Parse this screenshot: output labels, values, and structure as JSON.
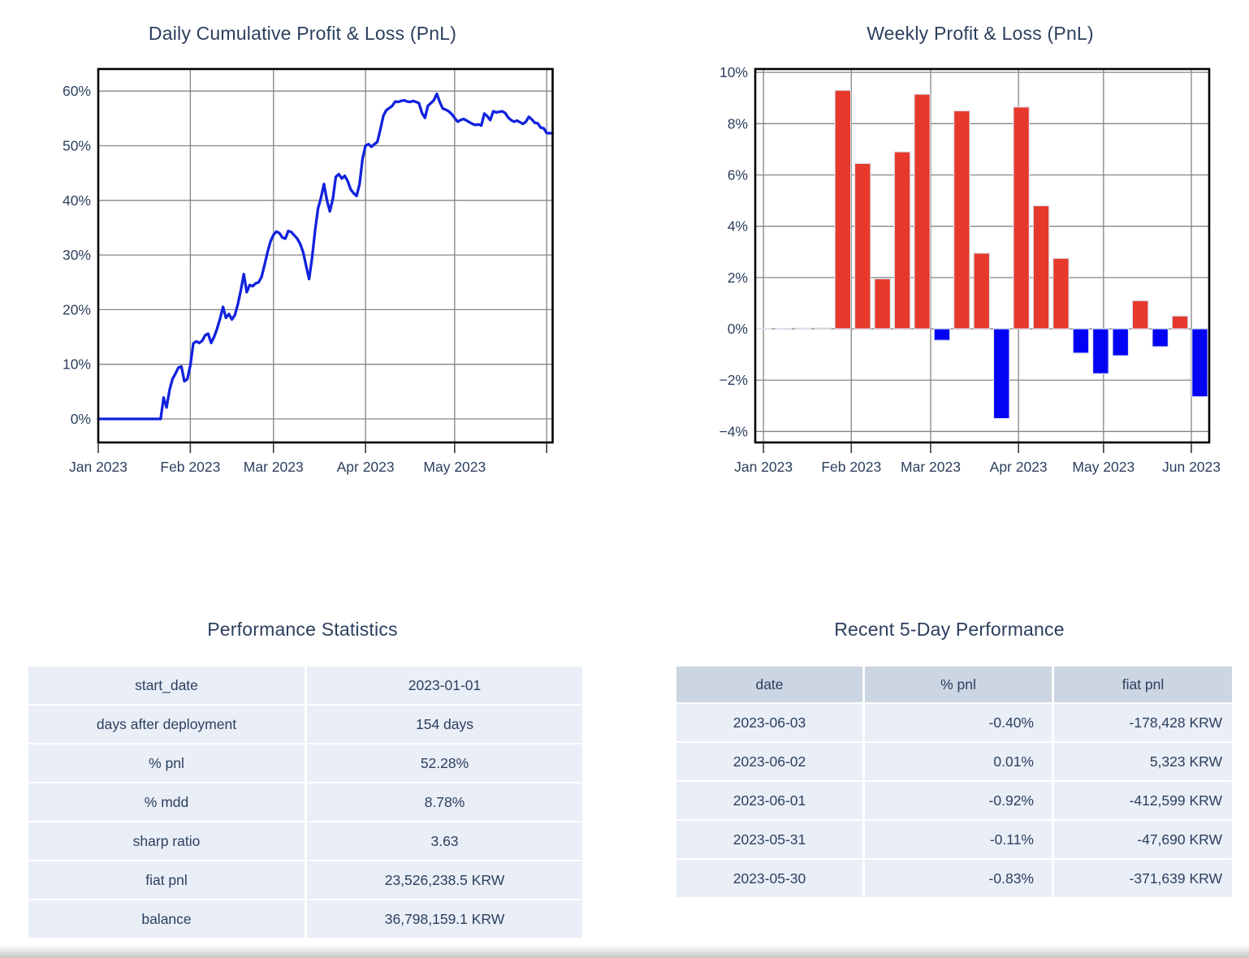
{
  "colors": {
    "text": "#2c3f5e",
    "grid": "#848484",
    "plot_border": "#000000",
    "line_blue": "#1122dd",
    "bar_positive_red": "#e6392b",
    "bar_negative_blue": "#0202f5",
    "bar_edge": "#dde4f0",
    "table_row_bg": "#e9eef7",
    "table_header_bg": "#ccd5e2"
  },
  "charts": {
    "daily": {
      "title": "Daily Cumulative Profit & Loss (PnL)",
      "chart_data": {
        "type": "line",
        "title": "Daily Cumulative Profit & Loss (PnL)",
        "x_start_date": "2023-01-01",
        "x_tick_labels": [
          "Jan 2023",
          "Feb 2023",
          "Mar 2023",
          "Apr 2023",
          "May 2023"
        ],
        "month_grid_days": [
          0,
          31,
          59,
          90,
          120,
          151
        ],
        "y_ticks": [
          0,
          10,
          20,
          30,
          40,
          50,
          60
        ],
        "y_tick_labels": [
          "0%",
          "10%",
          "20%",
          "30%",
          "40%",
          "50%",
          "60%"
        ],
        "xlim_days": [
          0,
          153
        ],
        "ylim": [
          -4.31,
          64.04
        ],
        "grid": true,
        "legend": "none",
        "values_pct_daily": [
          0,
          0,
          0,
          0,
          0,
          0,
          0,
          0,
          0,
          0,
          0,
          0,
          0,
          0,
          0,
          0,
          0,
          0,
          0,
          0,
          0,
          0,
          3.9,
          2.1,
          5.3,
          7.3,
          8.3,
          9.4,
          9.6,
          6.9,
          7.3,
          9.8,
          13.8,
          14.2,
          13.9,
          14.3,
          15.3,
          15.6,
          13.9,
          15.0,
          16.5,
          18.3,
          20.5,
          18.5,
          19.2,
          18.2,
          19.0,
          21.0,
          23.5,
          26.5,
          23.2,
          24.5,
          24.3,
          24.8,
          25.0,
          26.0,
          28.2,
          30.5,
          32.5,
          33.7,
          34.3,
          34.0,
          33.2,
          33.0,
          34.4,
          34.2,
          33.6,
          33.0,
          32.0,
          30.5,
          28.0,
          25.6,
          29.5,
          34.5,
          38.5,
          40.5,
          43.0,
          40.0,
          38.0,
          40.3,
          44.3,
          44.8,
          44.0,
          44.5,
          43.5,
          42.0,
          41.3,
          40.8,
          43.0,
          47.7,
          50.0,
          50.3,
          49.8,
          50.3,
          50.7,
          53.0,
          55.5,
          56.5,
          56.9,
          57.3,
          58.1,
          58.0,
          58.2,
          58.3,
          58.1,
          58.0,
          58.2,
          58.0,
          57.8,
          56.0,
          55.1,
          57.3,
          57.8,
          58.3,
          59.5,
          58.0,
          56.8,
          56.6,
          56.3,
          55.8,
          55.1,
          54.4,
          54.7,
          54.9,
          54.6,
          54.3,
          54.0,
          53.8,
          53.9,
          53.7,
          55.9,
          55.4,
          54.7,
          56.3,
          56.1,
          56.2,
          56.3,
          56.0,
          55.2,
          54.7,
          54.4,
          54.6,
          54.3,
          54.0,
          54.4,
          55.3,
          54.8,
          54.2,
          54.1,
          53.3,
          53.2,
          52.3,
          52.3,
          52.28
        ]
      }
    },
    "weekly": {
      "title": "Weekly Profit & Loss (PnL)",
      "chart_data": {
        "type": "bar",
        "title": "Weekly Profit & Loss (PnL)",
        "x_start_date": "2023-01-01",
        "x_tick_labels": [
          "Jan 2023",
          "Feb 2023",
          "Mar 2023",
          "Apr 2023",
          "May 2023",
          "Jun 2023"
        ],
        "month_grid_days": [
          0,
          31,
          59,
          90,
          120,
          151
        ],
        "y_ticks": [
          -4,
          -2,
          0,
          2,
          4,
          6,
          8,
          10
        ],
        "y_tick_labels": [
          "−4%",
          "−2%",
          "0%",
          "2%",
          "4%",
          "6%",
          "8%",
          "10%"
        ],
        "xlim_days": [
          -2.9,
          157.3
        ],
        "ylim": [
          -4.43,
          10.13
        ],
        "grid": true,
        "legend": "none",
        "weeks": [
          {
            "date": "2023-01-01",
            "pct": 0.0
          },
          {
            "date": "2023-01-08",
            "pct": 0.02
          },
          {
            "date": "2023-01-15",
            "pct": 0.03
          },
          {
            "date": "2023-01-22",
            "pct": 0.04
          },
          {
            "date": "2023-01-29",
            "pct": 9.3
          },
          {
            "date": "2023-02-05",
            "pct": 6.45
          },
          {
            "date": "2023-02-12",
            "pct": 1.95
          },
          {
            "date": "2023-02-19",
            "pct": 6.9
          },
          {
            "date": "2023-02-26",
            "pct": 9.15
          },
          {
            "date": "2023-03-05",
            "pct": -0.45
          },
          {
            "date": "2023-03-12",
            "pct": 8.5
          },
          {
            "date": "2023-03-19",
            "pct": 2.95
          },
          {
            "date": "2023-03-26",
            "pct": -3.5
          },
          {
            "date": "2023-04-02",
            "pct": 8.65
          },
          {
            "date": "2023-04-09",
            "pct": 4.8
          },
          {
            "date": "2023-04-16",
            "pct": 2.75
          },
          {
            "date": "2023-04-23",
            "pct": -0.95
          },
          {
            "date": "2023-04-30",
            "pct": -1.75
          },
          {
            "date": "2023-05-07",
            "pct": -1.05
          },
          {
            "date": "2023-05-14",
            "pct": 1.1
          },
          {
            "date": "2023-05-21",
            "pct": -0.7
          },
          {
            "date": "2023-05-28",
            "pct": 0.5
          },
          {
            "date": "2023-06-04",
            "pct": -2.65
          }
        ]
      }
    }
  },
  "tables": {
    "performance": {
      "title": "Performance Statistics",
      "rows": [
        [
          "start_date",
          "2023-01-01"
        ],
        [
          "days after deployment",
          "154 days"
        ],
        [
          "% pnl",
          "52.28%"
        ],
        [
          "% mdd",
          "8.78%"
        ],
        [
          "sharp ratio",
          "3.63"
        ],
        [
          "fiat pnl",
          "23,526,238.5 KRW"
        ],
        [
          "balance",
          "36,798,159.1 KRW"
        ]
      ]
    },
    "recent": {
      "title": "Recent 5-Day Performance",
      "headers": [
        "date",
        "% pnl",
        "fiat pnl"
      ],
      "rows": [
        [
          "2023-06-03",
          "-0.40%",
          "-178,428 KRW"
        ],
        [
          "2023-06-02",
          "0.01%",
          "5,323 KRW"
        ],
        [
          "2023-06-01",
          "-0.92%",
          "-412,599 KRW"
        ],
        [
          "2023-05-31",
          "-0.11%",
          "-47,690 KRW"
        ],
        [
          "2023-05-30",
          "-0.83%",
          "-371,639 KRW"
        ]
      ]
    }
  }
}
